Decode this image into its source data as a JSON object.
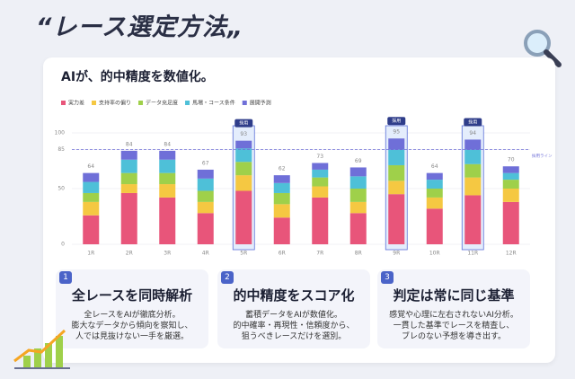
{
  "header": {
    "title": "“レース選定方法„"
  },
  "chart_data": {
    "type": "stacked-bar",
    "title": "AIが、的中精度を数値化。",
    "categories": [
      "1R",
      "2R",
      "3R",
      "4R",
      "5R",
      "6R",
      "7R",
      "8R",
      "9R",
      "10R",
      "11R",
      "12R"
    ],
    "series": [
      {
        "name": "実力差",
        "color": "#e8557a",
        "values": [
          26,
          46,
          42,
          28,
          48,
          24,
          42,
          28,
          45,
          32,
          44,
          38
        ]
      },
      {
        "name": "支持率の偏り",
        "color": "#f5c842",
        "values": [
          12,
          8,
          12,
          10,
          14,
          12,
          10,
          10,
          12,
          10,
          16,
          12
        ]
      },
      {
        "name": "データ充足度",
        "color": "#9fd04a",
        "values": [
          8,
          10,
          10,
          10,
          12,
          10,
          8,
          12,
          14,
          8,
          12,
          8
        ]
      },
      {
        "name": "馬場・コース条件",
        "color": "#4ec0d8",
        "values": [
          10,
          12,
          12,
          11,
          12,
          9,
          7,
          11,
          14,
          8,
          13,
          6
        ]
      },
      {
        "name": "展開予測",
        "color": "#6f6fd8",
        "values": [
          8,
          8,
          8,
          8,
          7,
          7,
          6,
          8,
          10,
          6,
          9,
          6
        ]
      }
    ],
    "totals": [
      64,
      84,
      84,
      67,
      93,
      62,
      73,
      69,
      95,
      64,
      94,
      70
    ],
    "ylim": [
      0,
      100
    ],
    "yticks": [
      0,
      50,
      85,
      100
    ],
    "grid": true,
    "threshold": {
      "value": 85,
      "label": "採用ライン"
    },
    "badge": "採用",
    "highlighted": [
      4,
      8,
      10
    ]
  },
  "features": [
    {
      "number": 1,
      "title": "全レースを同時解析",
      "lines": [
        "全レースをAIが徹底分析。",
        "膨大なデータから傾向を察知し、",
        "人では見抜けない一手を厳選。"
      ]
    },
    {
      "number": 2,
      "title": "的中精度をスコア化",
      "lines": [
        "蓄積データをAIが数値化。",
        "的中確率・再現性・信頼度から、",
        "狙うべきレースだけを選別。"
      ]
    },
    {
      "number": 3,
      "title": "判定は常に同じ基準",
      "lines": [
        "感覚や心理に左右されないAI分析。",
        "一貫した基準でレースを精査し、",
        "ブレのない予想を導き出す。"
      ]
    }
  ]
}
